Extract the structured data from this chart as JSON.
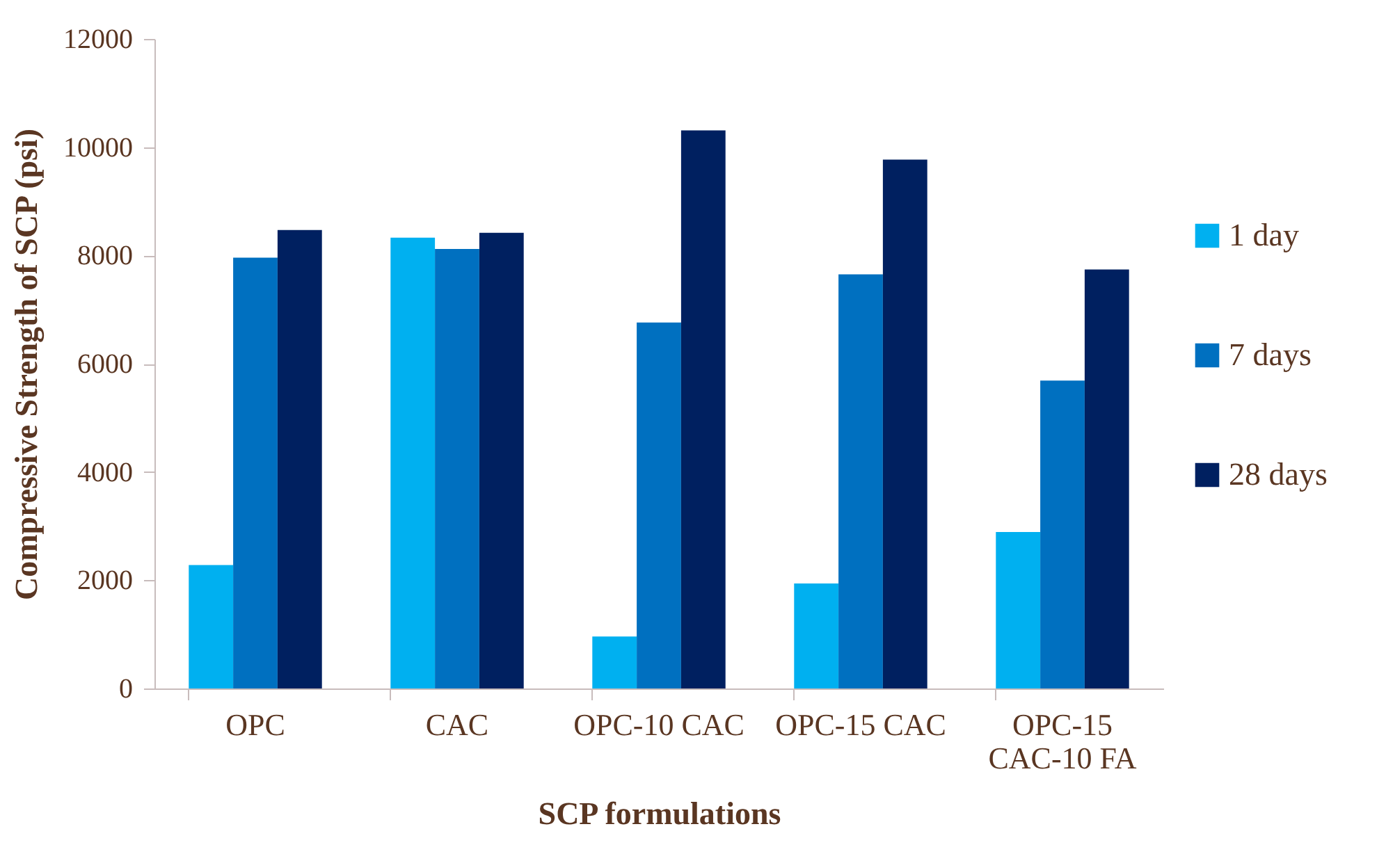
{
  "chart_data": {
    "type": "bar",
    "xlabel": "SCP formulations",
    "ylabel": "Compressive Strength of SCP (psi)",
    "categories": [
      "OPC",
      "CAC",
      "OPC-10 CAC",
      "OPC-15 CAC",
      "OPC-15 CAC-10 FA"
    ],
    "series": [
      {
        "name": "1 day",
        "color": "#00b0f0",
        "values": [
          2280,
          8330,
          960,
          1940,
          2890
        ]
      },
      {
        "name": "7 days",
        "color": "#0070c0",
        "values": [
          7960,
          8120,
          6760,
          7650,
          5690
        ]
      },
      {
        "name": "28 days",
        "color": "#002060",
        "values": [
          8470,
          8420,
          10310,
          9770,
          7740
        ]
      }
    ],
    "ylim": [
      0,
      12000
    ],
    "yticks": [
      0,
      2000,
      4000,
      6000,
      8000,
      10000,
      12000
    ],
    "grid": false,
    "legend": "right"
  }
}
